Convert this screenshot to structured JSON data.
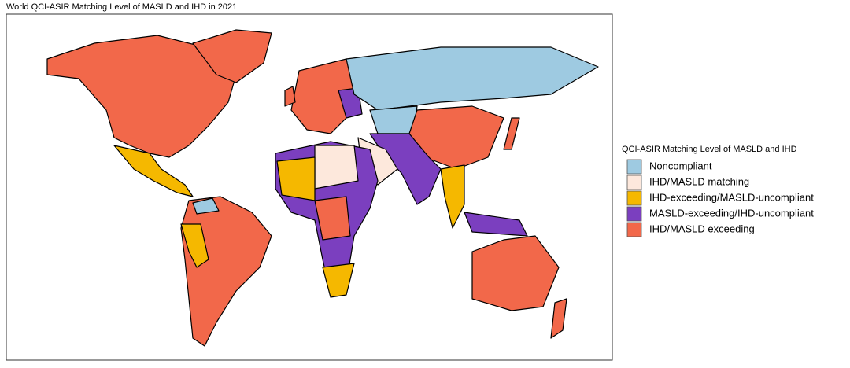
{
  "title": "World QCI-ASIR Matching Level of MASLD and IHD in 2021",
  "legend": {
    "title": "QCI-ASIR Matching Level of MASLD and IHD",
    "items": [
      {
        "label": "Noncompliant",
        "color": "#9ecae1"
      },
      {
        "label": "IHD/MASLD matching",
        "color": "#fde8dc"
      },
      {
        "label": "IHD-exceeding/MASLD-uncompliant",
        "color": "#f5b800"
      },
      {
        "label": "MASLD-exceeding/IHD-uncompliant",
        "color": "#7b3fbf"
      },
      {
        "label": "IHD/MASLD exceeding",
        "color": "#f2684a"
      }
    ]
  }
}
